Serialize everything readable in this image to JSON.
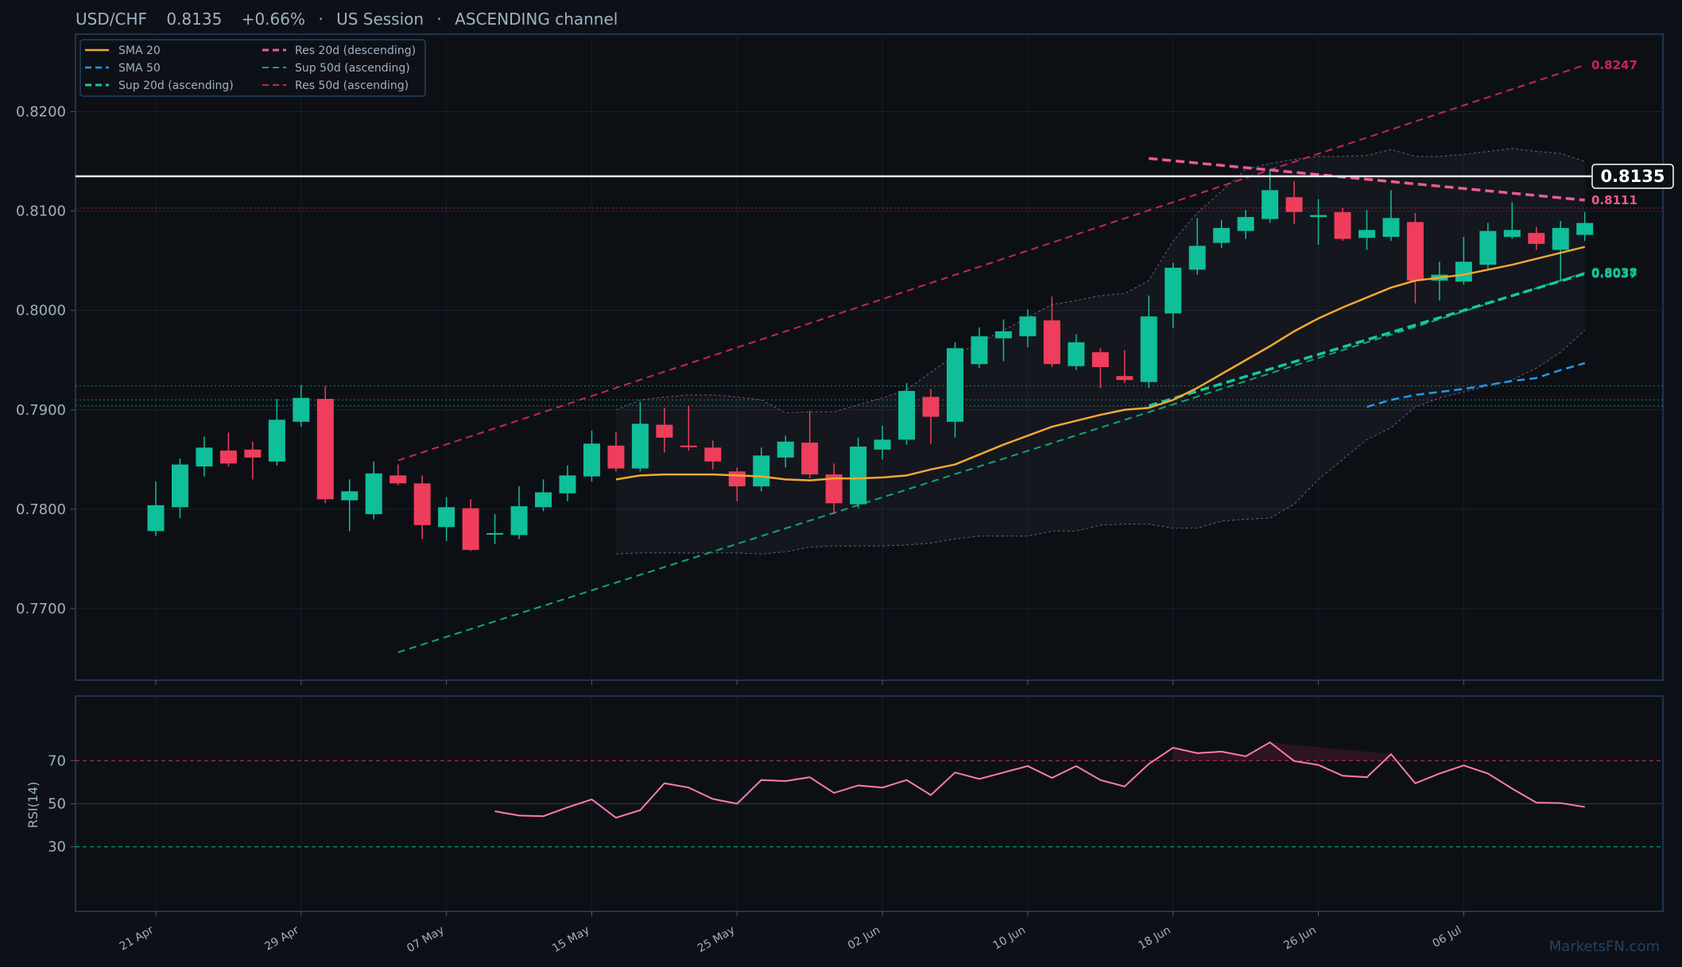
{
  "header": {
    "pair": "USD/CHF",
    "price": "0.8135",
    "change": "+0.66%",
    "session": "US Session",
    "pattern": "ASCENDING channel",
    "sep": "·"
  },
  "watermark": "MarketsFN.com",
  "colors": {
    "bg": "#0d1117",
    "panel_border": "#24405e",
    "up": "#0fbf9a",
    "down": "#ef3d5c",
    "sma20": "#f3a833",
    "sma50": "#1e9bf0",
    "sup20": "#14c9a0",
    "res20": "#ec5a95",
    "sup50": "#0fa874",
    "res50": "#c42756",
    "rsi": "#ff7ab0",
    "text": "#9fb0c2"
  },
  "chart_data": {
    "type": "candlestick",
    "x_ticks": [
      "21 Apr",
      "29 Apr",
      "07 May",
      "15 May",
      "25 May",
      "02 Jun",
      "10 Jun",
      "18 Jun",
      "26 Jun",
      "06 Jul"
    ],
    "x_tick_index": [
      0,
      6,
      12,
      18,
      24,
      30,
      36,
      42,
      48,
      54
    ],
    "y_ticks": [
      "0.7700",
      "0.7800",
      "0.7900",
      "0.8000",
      "0.8100",
      "0.8200"
    ],
    "ylim": [
      0.7628,
      0.8278
    ],
    "candles": [
      {
        "o": 0.7778,
        "h": 0.7828,
        "l": 0.7773,
        "c": 0.7804
      },
      {
        "o": 0.7802,
        "h": 0.7851,
        "l": 0.7791,
        "c": 0.7845
      },
      {
        "o": 0.7843,
        "h": 0.7873,
        "l": 0.7833,
        "c": 0.7862
      },
      {
        "o": 0.7859,
        "h": 0.7877,
        "l": 0.7843,
        "c": 0.7846
      },
      {
        "o": 0.786,
        "h": 0.7868,
        "l": 0.783,
        "c": 0.7852
      },
      {
        "o": 0.7848,
        "h": 0.7911,
        "l": 0.7844,
        "c": 0.789
      },
      {
        "o": 0.7888,
        "h": 0.7925,
        "l": 0.7883,
        "c": 0.7912
      },
      {
        "o": 0.7911,
        "h": 0.7924,
        "l": 0.7806,
        "c": 0.781
      },
      {
        "o": 0.7809,
        "h": 0.783,
        "l": 0.7778,
        "c": 0.7818
      },
      {
        "o": 0.7795,
        "h": 0.7848,
        "l": 0.779,
        "c": 0.7836
      },
      {
        "o": 0.7834,
        "h": 0.7845,
        "l": 0.7824,
        "c": 0.7826
      },
      {
        "o": 0.7826,
        "h": 0.7834,
        "l": 0.777,
        "c": 0.7784
      },
      {
        "o": 0.7782,
        "h": 0.7812,
        "l": 0.7768,
        "c": 0.7802
      },
      {
        "o": 0.7801,
        "h": 0.781,
        "l": 0.7758,
        "c": 0.7759
      },
      {
        "o": 0.7776,
        "h": 0.7795,
        "l": 0.7765,
        "c": 0.7776
      },
      {
        "o": 0.7774,
        "h": 0.7823,
        "l": 0.777,
        "c": 0.7803
      },
      {
        "o": 0.7802,
        "h": 0.783,
        "l": 0.7798,
        "c": 0.7817
      },
      {
        "o": 0.7816,
        "h": 0.7844,
        "l": 0.7808,
        "c": 0.7834
      },
      {
        "o": 0.7833,
        "h": 0.7879,
        "l": 0.7828,
        "c": 0.7866
      },
      {
        "o": 0.7864,
        "h": 0.7878,
        "l": 0.7838,
        "c": 0.7841
      },
      {
        "o": 0.7841,
        "h": 0.7908,
        "l": 0.7838,
        "c": 0.7886
      },
      {
        "o": 0.7885,
        "h": 0.7902,
        "l": 0.7857,
        "c": 0.7872
      },
      {
        "o": 0.7864,
        "h": 0.7904,
        "l": 0.7859,
        "c": 0.7863
      },
      {
        "o": 0.7862,
        "h": 0.7869,
        "l": 0.784,
        "c": 0.7848
      },
      {
        "o": 0.7838,
        "h": 0.7842,
        "l": 0.7808,
        "c": 0.7823
      },
      {
        "o": 0.7823,
        "h": 0.7862,
        "l": 0.7818,
        "c": 0.7854
      },
      {
        "o": 0.7852,
        "h": 0.7874,
        "l": 0.7842,
        "c": 0.7868
      },
      {
        "o": 0.7867,
        "h": 0.7899,
        "l": 0.7831,
        "c": 0.7835
      },
      {
        "o": 0.7835,
        "h": 0.7846,
        "l": 0.7795,
        "c": 0.7806
      },
      {
        "o": 0.7805,
        "h": 0.7872,
        "l": 0.7801,
        "c": 0.7863
      },
      {
        "o": 0.786,
        "h": 0.7884,
        "l": 0.785,
        "c": 0.787
      },
      {
        "o": 0.787,
        "h": 0.7927,
        "l": 0.7865,
        "c": 0.7919
      },
      {
        "o": 0.7913,
        "h": 0.7921,
        "l": 0.7866,
        "c": 0.7893
      },
      {
        "o": 0.7888,
        "h": 0.7968,
        "l": 0.7872,
        "c": 0.7962
      },
      {
        "o": 0.7946,
        "h": 0.7983,
        "l": 0.7942,
        "c": 0.7974
      },
      {
        "o": 0.7972,
        "h": 0.7991,
        "l": 0.7949,
        "c": 0.7979
      },
      {
        "o": 0.7974,
        "h": 0.8001,
        "l": 0.7963,
        "c": 0.7994
      },
      {
        "o": 0.799,
        "h": 0.8014,
        "l": 0.7943,
        "c": 0.7946
      },
      {
        "o": 0.7944,
        "h": 0.7976,
        "l": 0.794,
        "c": 0.7968
      },
      {
        "o": 0.7958,
        "h": 0.7962,
        "l": 0.7922,
        "c": 0.7943
      },
      {
        "o": 0.7934,
        "h": 0.796,
        "l": 0.7927,
        "c": 0.793
      },
      {
        "o": 0.7928,
        "h": 0.8015,
        "l": 0.7922,
        "c": 0.7994
      },
      {
        "o": 0.7997,
        "h": 0.8048,
        "l": 0.7982,
        "c": 0.8043
      },
      {
        "o": 0.8041,
        "h": 0.8093,
        "l": 0.8036,
        "c": 0.8065
      },
      {
        "o": 0.8068,
        "h": 0.8091,
        "l": 0.8063,
        "c": 0.8083
      },
      {
        "o": 0.808,
        "h": 0.8101,
        "l": 0.8072,
        "c": 0.8094
      },
      {
        "o": 0.8092,
        "h": 0.8142,
        "l": 0.8088,
        "c": 0.8121
      },
      {
        "o": 0.8114,
        "h": 0.813,
        "l": 0.8087,
        "c": 0.8099
      },
      {
        "o": 0.8094,
        "h": 0.8112,
        "l": 0.8066,
        "c": 0.8096
      },
      {
        "o": 0.8099,
        "h": 0.8103,
        "l": 0.807,
        "c": 0.8072
      },
      {
        "o": 0.8073,
        "h": 0.8101,
        "l": 0.8061,
        "c": 0.8081
      },
      {
        "o": 0.8074,
        "h": 0.8121,
        "l": 0.807,
        "c": 0.8093
      },
      {
        "o": 0.8089,
        "h": 0.8098,
        "l": 0.8007,
        "c": 0.803
      },
      {
        "o": 0.803,
        "h": 0.8049,
        "l": 0.801,
        "c": 0.8036
      },
      {
        "o": 0.8029,
        "h": 0.8074,
        "l": 0.8026,
        "c": 0.8049
      },
      {
        "o": 0.8046,
        "h": 0.8088,
        "l": 0.8042,
        "c": 0.808
      },
      {
        "o": 0.8074,
        "h": 0.8109,
        "l": 0.8072,
        "c": 0.8081
      },
      {
        "o": 0.8078,
        "h": 0.8084,
        "l": 0.8061,
        "c": 0.8067
      },
      {
        "o": 0.8061,
        "h": 0.809,
        "l": 0.8029,
        "c": 0.8083
      },
      {
        "o": 0.8076,
        "h": 0.8099,
        "l": 0.807,
        "c": 0.8088
      }
    ],
    "sma20": {
      "start": 19,
      "values": [
        0.783,
        0.7834,
        0.7835,
        0.7835,
        0.7835,
        0.7834,
        0.7833,
        0.783,
        0.7829,
        0.7831,
        0.7831,
        0.7832,
        0.7834,
        0.784,
        0.7845,
        0.7855,
        0.7865,
        0.7874,
        0.7883,
        0.7889,
        0.7895,
        0.79,
        0.7902,
        0.791,
        0.7922,
        0.7936,
        0.795,
        0.7964,
        0.7979,
        0.7992,
        0.8003,
        0.8013,
        0.8023,
        0.803,
        0.8033,
        0.8036,
        0.8041,
        0.8046,
        0.8052,
        0.8058,
        0.8064
      ]
    },
    "sma50": {
      "start": 50,
      "values": [
        0.7903,
        0.791,
        0.7915,
        0.7918,
        0.7921,
        0.7925,
        0.7929,
        0.7932,
        0.794,
        0.7947
      ]
    },
    "bollinger": {
      "start": 19,
      "upper": [
        0.79,
        0.791,
        0.7913,
        0.7915,
        0.7915,
        0.7913,
        0.791,
        0.7897,
        0.7898,
        0.7898,
        0.7905,
        0.7912,
        0.792,
        0.7938,
        0.7955,
        0.7968,
        0.798,
        0.7993,
        0.8006,
        0.801,
        0.8015,
        0.8017,
        0.803,
        0.807,
        0.8098,
        0.812,
        0.8142,
        0.8148,
        0.8152,
        0.8155,
        0.8155,
        0.8156,
        0.8162,
        0.8155,
        0.8155,
        0.8157,
        0.816,
        0.8163,
        0.816,
        0.8158,
        0.815
      ],
      "lower": [
        0.7755,
        0.7756,
        0.7756,
        0.7756,
        0.7756,
        0.7756,
        0.7755,
        0.7757,
        0.7762,
        0.7763,
        0.7763,
        0.7763,
        0.7764,
        0.7766,
        0.777,
        0.7773,
        0.7773,
        0.7773,
        0.7778,
        0.7778,
        0.7784,
        0.7785,
        0.7785,
        0.7781,
        0.7781,
        0.7788,
        0.779,
        0.7791,
        0.7805,
        0.783,
        0.785,
        0.787,
        0.7882,
        0.7903,
        0.7912,
        0.7918,
        0.7924,
        0.793,
        0.7942,
        0.7958,
        0.798
      ]
    },
    "sup_20d": {
      "label": "Sup 20d (ascending)",
      "i0": 41,
      "v0": 0.7904,
      "i1": 59,
      "v1": 0.8037
    },
    "res_20d": {
      "label": "Res 20d (descending)",
      "i0": 41,
      "v0": 0.8153,
      "i1": 59,
      "v1": 0.8111
    },
    "sup_50d": {
      "label": "Sup 50d (ascending)",
      "i0": 10,
      "v0": 0.7656,
      "i1": 59,
      "v1": 0.8038
    },
    "res_50d": {
      "label": "Res 50d (ascending)",
      "i0": 10,
      "v0": 0.7849,
      "i1": 59,
      "v1": 0.8247
    },
    "current_price": 0.8135,
    "current_price_label": "0.8135",
    "right_labels": [
      {
        "text": "0.8247",
        "value": 0.8247,
        "color": "#c42756"
      },
      {
        "text": "0.8111",
        "value": 0.8111,
        "color": "#ec5a95"
      },
      {
        "text": "0.8038",
        "value": 0.8038,
        "color": "#0fa874"
      },
      {
        "text": "0.8037",
        "value": 0.8037,
        "color": "#14c9a0"
      }
    ],
    "hlines": [
      {
        "value": 0.8103,
        "color": "#c42756"
      },
      {
        "value": 0.7924,
        "color": "#0fa874"
      },
      {
        "value": 0.791,
        "color": "#0fa874"
      },
      {
        "value": 0.7904,
        "color": "#0fa874"
      }
    ],
    "legend": {
      "position": "top-left",
      "items": [
        "SMA 20",
        "SMA 50",
        "Sup 20d (ascending)",
        "Res 20d (descending)",
        "Sup 50d (ascending)",
        "Res 50d (ascending)"
      ]
    },
    "rsi": {
      "ylabel": "RSI(14)",
      "y_ticks": [
        "30",
        "50",
        "70"
      ],
      "ylim": [
        0,
        100
      ],
      "start": 14,
      "values": [
        46.5,
        44.5,
        44.2,
        48.3,
        52.0,
        43.5,
        47.0,
        59.5,
        57.5,
        52.2,
        50.0,
        61.0,
        60.5,
        62.3,
        55.0,
        58.5,
        57.5,
        61.0,
        54.0,
        64.5,
        61.5,
        64.5,
        67.5,
        62.0,
        67.5,
        61.0,
        58.0,
        68.5,
        76.0,
        73.5,
        74.2,
        72.0,
        78.5,
        69.8,
        68.0,
        63.0,
        62.3,
        73.0,
        59.5,
        64.0,
        67.8,
        64.0,
        57.0,
        50.5,
        50.3,
        48.5
      ]
    }
  }
}
